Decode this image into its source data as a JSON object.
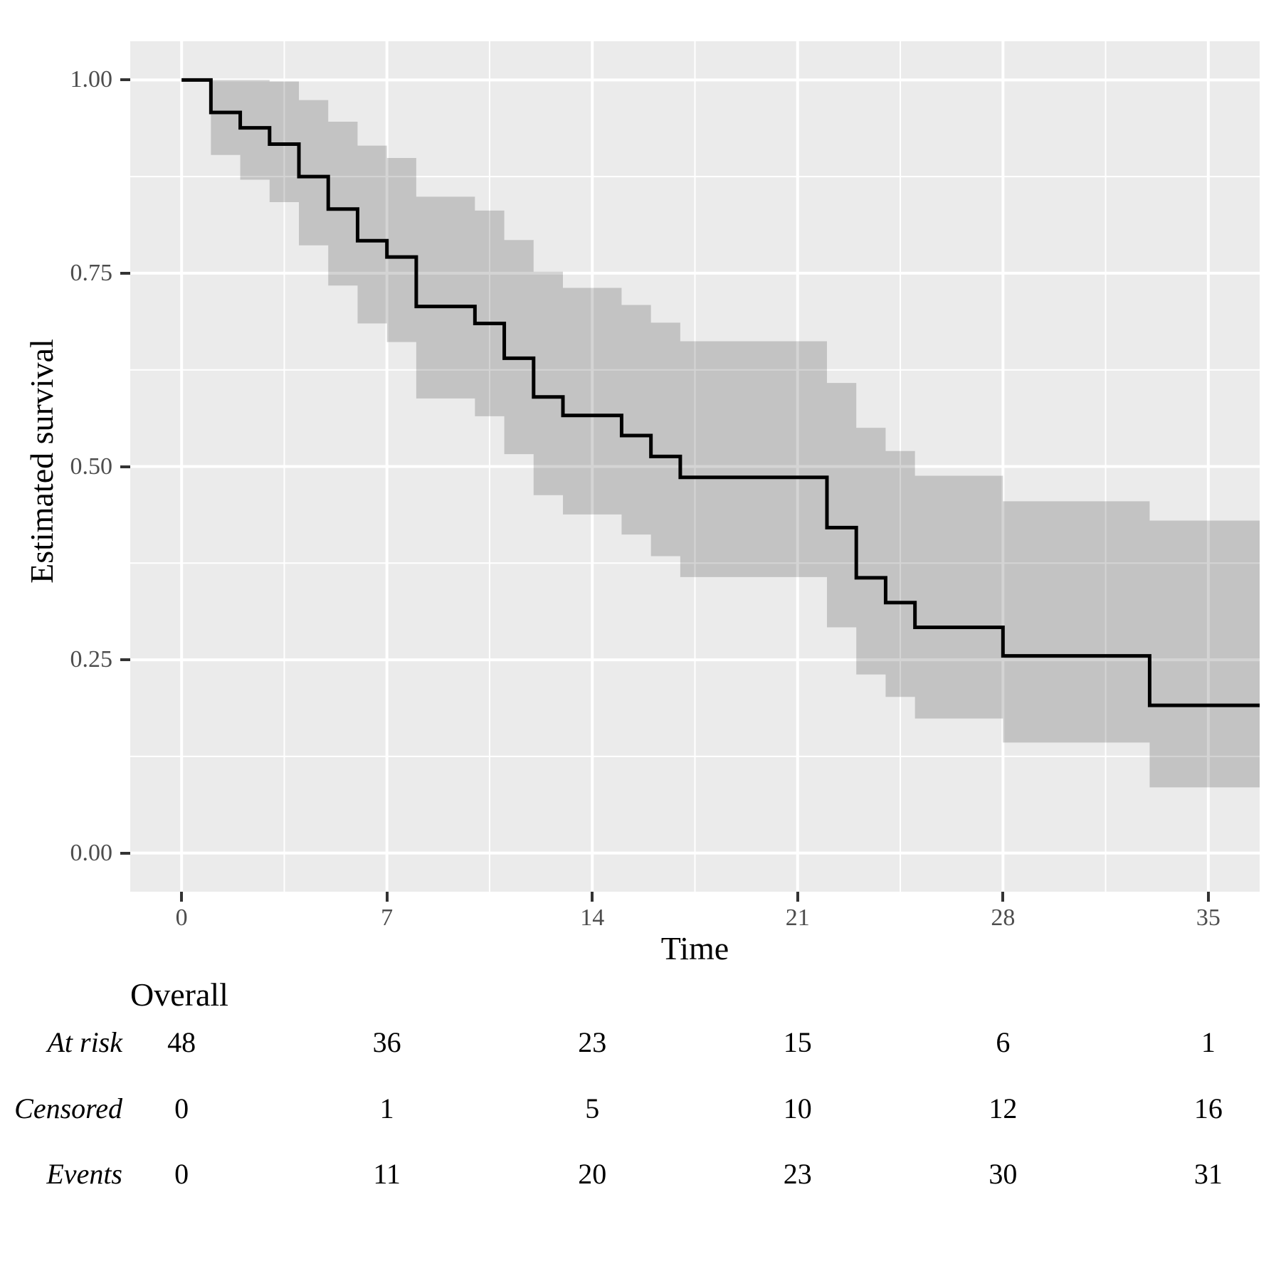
{
  "chart_data": {
    "type": "line",
    "subtype": "kaplan-meier-step",
    "title": "",
    "xlabel": "Time",
    "ylabel": "Estimated survival",
    "grid": true,
    "legend_position": "none",
    "xlim": [
      -1.75,
      36.75
    ],
    "ylim": [
      -0.05,
      1.05
    ],
    "x_ticks": [
      {
        "label": "0",
        "value": 0
      },
      {
        "label": "7",
        "value": 7
      },
      {
        "label": "14",
        "value": 14
      },
      {
        "label": "21",
        "value": 21
      },
      {
        "label": "28",
        "value": 28
      },
      {
        "label": "35",
        "value": 35
      }
    ],
    "x_minor_ticks": [
      3.5,
      10.5,
      17.5,
      24.5,
      31.5
    ],
    "y_ticks": [
      {
        "label": "1.00",
        "value": 1.0
      },
      {
        "label": "0.75",
        "value": 0.75
      },
      {
        "label": "0.50",
        "value": 0.5
      },
      {
        "label": "0.25",
        "value": 0.25
      },
      {
        "label": "0.00",
        "value": 0.0
      }
    ],
    "y_minor_ticks": [
      0.875,
      0.625,
      0.375,
      0.125
    ],
    "curve_end_time": 36.75,
    "km_steps": [
      {
        "time": 0,
        "survival": 1.0,
        "lower": null,
        "upper": null
      },
      {
        "time": 1,
        "survival": 0.958,
        "lower": 0.903,
        "upper": 1.0
      },
      {
        "time": 2,
        "survival": 0.938,
        "lower": 0.871,
        "upper": 1.0
      },
      {
        "time": 3,
        "survival": 0.917,
        "lower": 0.842,
        "upper": 0.998
      },
      {
        "time": 4,
        "survival": 0.875,
        "lower": 0.786,
        "upper": 0.974
      },
      {
        "time": 5,
        "survival": 0.833,
        "lower": 0.734,
        "upper": 0.946
      },
      {
        "time": 6,
        "survival": 0.792,
        "lower": 0.685,
        "upper": 0.915
      },
      {
        "time": 7,
        "survival": 0.771,
        "lower": 0.661,
        "upper": 0.899
      },
      {
        "time": 8,
        "survival": 0.707,
        "lower": 0.588,
        "upper": 0.849
      },
      {
        "time": 10,
        "survival": 0.685,
        "lower": 0.565,
        "upper": 0.831
      },
      {
        "time": 11,
        "survival": 0.64,
        "lower": 0.516,
        "upper": 0.793
      },
      {
        "time": 12,
        "survival": 0.59,
        "lower": 0.463,
        "upper": 0.752
      },
      {
        "time": 13,
        "survival": 0.566,
        "lower": 0.438,
        "upper": 0.731
      },
      {
        "time": 15,
        "survival": 0.54,
        "lower": 0.412,
        "upper": 0.709
      },
      {
        "time": 16,
        "survival": 0.513,
        "lower": 0.384,
        "upper": 0.686
      },
      {
        "time": 17,
        "survival": 0.486,
        "lower": 0.357,
        "upper": 0.662
      },
      {
        "time": 22,
        "survival": 0.421,
        "lower": 0.292,
        "upper": 0.608
      },
      {
        "time": 23,
        "survival": 0.356,
        "lower": 0.231,
        "upper": 0.55
      },
      {
        "time": 24,
        "survival": 0.324,
        "lower": 0.202,
        "upper": 0.52
      },
      {
        "time": 25,
        "survival": 0.292,
        "lower": 0.174,
        "upper": 0.488
      },
      {
        "time": 28,
        "survival": 0.255,
        "lower": 0.143,
        "upper": 0.455
      },
      {
        "time": 33,
        "survival": 0.191,
        "lower": 0.085,
        "upper": 0.43
      }
    ],
    "risk_table": {
      "title": "Overall",
      "time_points": [
        0,
        7,
        14,
        21,
        28,
        35
      ],
      "rows": [
        {
          "label": "At risk",
          "values": [
            48,
            36,
            23,
            15,
            6,
            1
          ]
        },
        {
          "label": "Censored",
          "values": [
            0,
            1,
            5,
            10,
            12,
            16
          ]
        },
        {
          "label": "Events",
          "values": [
            0,
            11,
            20,
            23,
            30,
            31
          ]
        }
      ]
    },
    "colors": {
      "line": "#000000",
      "confidence_band": "rgba(0,0,0,0.17)",
      "panel_background": "#ebebeb",
      "gridline": "#ffffff",
      "tick_text": "#4d4d4d",
      "tick_mark": "#333333",
      "text": "#000000"
    }
  }
}
